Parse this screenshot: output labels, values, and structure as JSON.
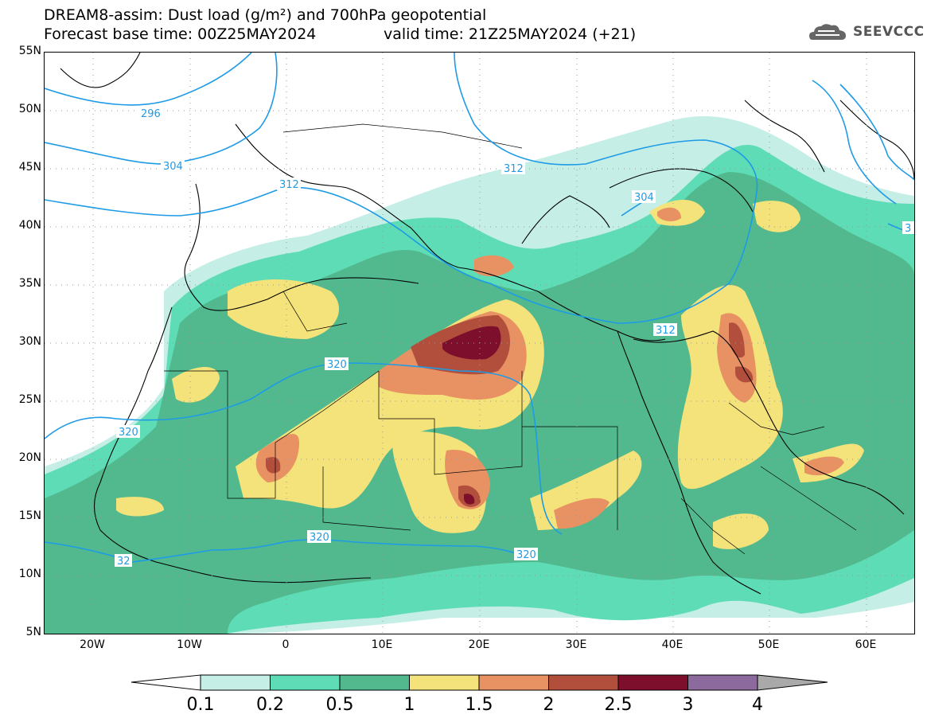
{
  "title_line1": "DREAM8-assim: Dust load (g/m²) and 700hPa geopotential",
  "title_line2": "Forecast base time: 00Z25MAY2024",
  "valid_time": "valid time: 21Z25MAY2024 (+21)",
  "logo": {
    "text": "SEEVCCC",
    "icon": "cloud-logo-icon"
  },
  "lat_labels": [
    "55N",
    "50N",
    "45N",
    "40N",
    "35N",
    "30N",
    "25N",
    "20N",
    "15N",
    "10N",
    "5N"
  ],
  "lon_labels": [
    "20W",
    "10W",
    "0",
    "10E",
    "20E",
    "30E",
    "40E",
    "50E",
    "60E"
  ],
  "contour_labels": [
    "296",
    "304",
    "312",
    "304",
    "312",
    "312",
    "320",
    "320",
    "320",
    "320",
    "32",
    "3"
  ],
  "colorbar": {
    "levels": [
      "0.1",
      "0.2",
      "0.5",
      "1",
      "1.5",
      "2",
      "2.5",
      "3",
      "4"
    ],
    "colors": [
      "#c4eee6",
      "#5edcb5",
      "#52b98f",
      "#f4e27a",
      "#e89263",
      "#b24f3c",
      "#7e0f2c",
      "#8d6a9e",
      "#a9a9a9"
    ]
  },
  "colors": {
    "contour": "#1e9be6",
    "border": "#000000"
  }
}
